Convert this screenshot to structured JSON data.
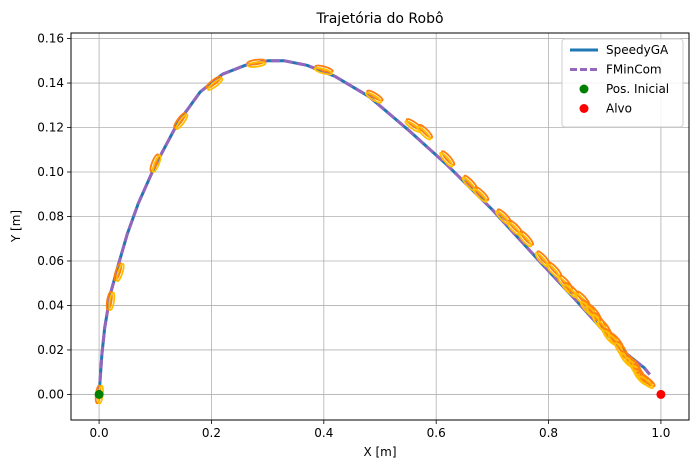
{
  "chart_data": {
    "type": "line",
    "title": "Trajetória do Robô",
    "xlabel": "X [m]",
    "ylabel": "Y [m]",
    "xlim": [
      -0.05,
      1.05
    ],
    "ylim": [
      -0.0115,
      0.1625
    ],
    "xticks": [
      0.0,
      0.2,
      0.4,
      0.6,
      0.8,
      1.0
    ],
    "xtick_labels": [
      "0.0",
      "0.2",
      "0.4",
      "0.6",
      "0.8",
      "1.0"
    ],
    "yticks": [
      0.0,
      0.02,
      0.04,
      0.06,
      0.08,
      0.1,
      0.12,
      0.14,
      0.16
    ],
    "ytick_labels": [
      "0.00",
      "0.02",
      "0.04",
      "0.06",
      "0.08",
      "0.10",
      "0.12",
      "0.14",
      "0.16"
    ],
    "grid": true,
    "legend_position": "top-right",
    "series": [
      {
        "name": "SpeedyGA",
        "style": "solid",
        "color": "#1f77b4",
        "x": [
          0.0,
          0.005,
          0.01,
          0.02,
          0.035,
          0.05,
          0.07,
          0.1,
          0.14,
          0.18,
          0.22,
          0.26,
          0.3,
          0.33,
          0.37,
          0.42,
          0.48,
          0.55,
          0.62,
          0.7,
          0.78,
          0.85,
          0.9,
          0.94,
          0.97,
          0.98
        ],
        "y": [
          0.0,
          0.018,
          0.03,
          0.045,
          0.059,
          0.072,
          0.086,
          0.103,
          0.122,
          0.136,
          0.144,
          0.148,
          0.15,
          0.15,
          0.148,
          0.143,
          0.134,
          0.119,
          0.103,
          0.083,
          0.061,
          0.042,
          0.028,
          0.018,
          0.012,
          0.009
        ]
      },
      {
        "name": "FMinCom",
        "style": "dashed",
        "color": "#9467bd",
        "x": [
          0.0,
          0.005,
          0.01,
          0.02,
          0.035,
          0.05,
          0.07,
          0.1,
          0.14,
          0.18,
          0.22,
          0.26,
          0.3,
          0.33,
          0.37,
          0.42,
          0.48,
          0.55,
          0.62,
          0.7,
          0.78,
          0.85,
          0.9,
          0.94,
          0.97,
          0.98
        ],
        "y": [
          0.0,
          0.018,
          0.03,
          0.045,
          0.059,
          0.072,
          0.086,
          0.103,
          0.122,
          0.136,
          0.144,
          0.148,
          0.15,
          0.15,
          0.148,
          0.143,
          0.134,
          0.119,
          0.103,
          0.083,
          0.061,
          0.042,
          0.028,
          0.018,
          0.012,
          0.009
        ]
      }
    ],
    "points": [
      {
        "name": "Pos. Inicial",
        "color": "#008000",
        "x": 0.0,
        "y": 0.0
      },
      {
        "name": "Alvo",
        "color": "#ff0000",
        "x": 1.0,
        "y": 0.0
      }
    ],
    "pose_markers": {
      "colors": [
        "#ff7f0e",
        "#ffbf00"
      ],
      "x": [
        0.0,
        0.02,
        0.035,
        0.1,
        0.145,
        0.205,
        0.28,
        0.4,
        0.49,
        0.56,
        0.58,
        0.62,
        0.66,
        0.68,
        0.72,
        0.74,
        0.76,
        0.79,
        0.81,
        0.83,
        0.84,
        0.86,
        0.87,
        0.88,
        0.89,
        0.9,
        0.91,
        0.92,
        0.93,
        0.94,
        0.95,
        0.955,
        0.96,
        0.965,
        0.97,
        0.975
      ],
      "y": [
        0.0,
        0.042,
        0.055,
        0.104,
        0.123,
        0.14,
        0.149,
        0.146,
        0.134,
        0.121,
        0.118,
        0.106,
        0.095,
        0.09,
        0.08,
        0.075,
        0.07,
        0.061,
        0.056,
        0.05,
        0.047,
        0.043,
        0.039,
        0.037,
        0.033,
        0.03,
        0.026,
        0.024,
        0.02,
        0.016,
        0.014,
        0.012,
        0.01,
        0.008,
        0.007,
        0.006
      ]
    }
  }
}
